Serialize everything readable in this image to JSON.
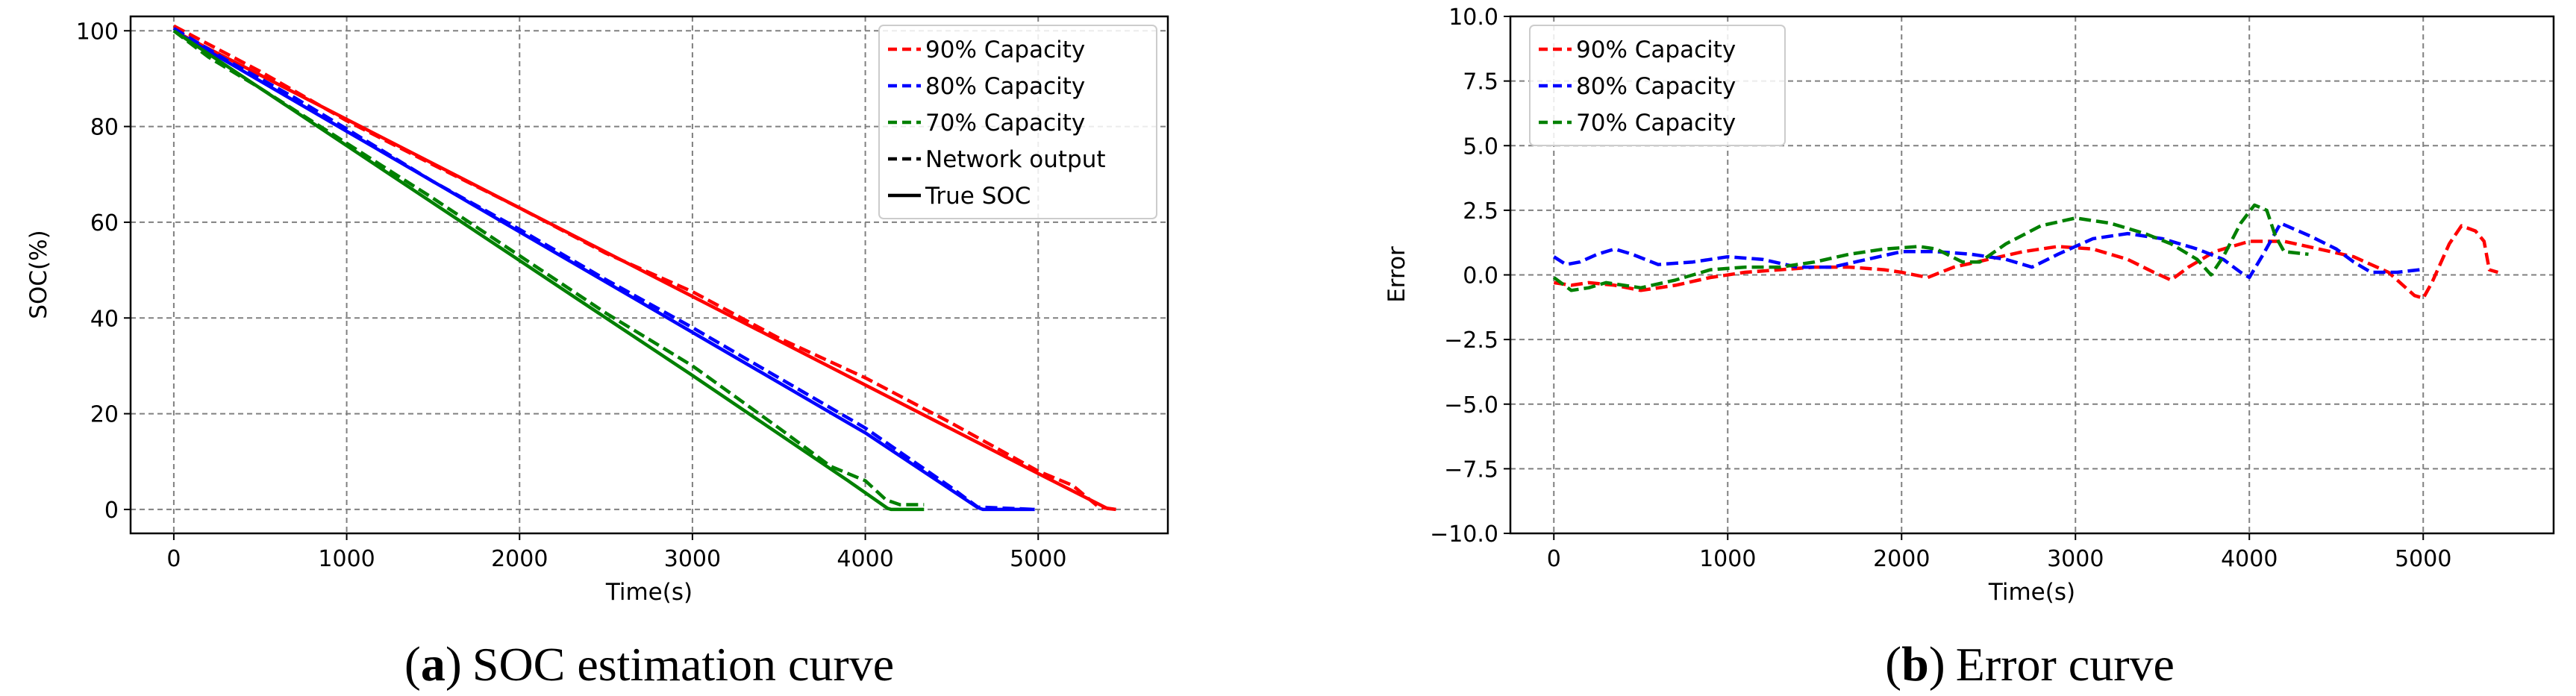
{
  "chart_data": [
    {
      "id": "a",
      "type": "line",
      "caption_letter": "a",
      "caption_text": "SOC estimation curve",
      "xlabel": "Time(s)",
      "ylabel": "SOC(%)",
      "xlim": [
        -250,
        5750
      ],
      "ylim": [
        -5,
        103
      ],
      "xticks": [
        0,
        1000,
        2000,
        3000,
        4000,
        5000
      ],
      "yticks": [
        0,
        20,
        40,
        60,
        80,
        100
      ],
      "grid": true,
      "legend_position": "top-right",
      "legend": [
        {
          "label": "90% Capacity",
          "color": "#ff0000",
          "style": "dashed"
        },
        {
          "label": "80% Capacity",
          "color": "#0000ff",
          "style": "dashed"
        },
        {
          "label": "70% Capacity",
          "color": "#008000",
          "style": "dashed"
        },
        {
          "label": "Network output",
          "color": "#000000",
          "style": "dashed"
        },
        {
          "label": "True SOC",
          "color": "#000000",
          "style": "solid"
        }
      ],
      "series": [
        {
          "name": "90% Capacity True SOC",
          "color": "#ff0000",
          "style": "solid",
          "points": [
            [
              0,
              100
            ],
            [
              1000,
              81.5
            ],
            [
              2000,
              63
            ],
            [
              3000,
              44.5
            ],
            [
              4000,
              26
            ],
            [
              5000,
              7.5
            ],
            [
              5400,
              0.2
            ],
            [
              5450,
              0
            ]
          ]
        },
        {
          "name": "90% Capacity Network output",
          "color": "#ff0000",
          "style": "dashed",
          "points": [
            [
              0,
              101
            ],
            [
              500,
              91.5
            ],
            [
              1000,
              81.2
            ],
            [
              1500,
              72
            ],
            [
              2000,
              63
            ],
            [
              2500,
              53.5
            ],
            [
              3000,
              45.5
            ],
            [
              3500,
              35.8
            ],
            [
              4000,
              27.5
            ],
            [
              4500,
              18
            ],
            [
              5000,
              8
            ],
            [
              5200,
              5
            ],
            [
              5350,
              0.5
            ],
            [
              5450,
              0
            ]
          ]
        },
        {
          "name": "80% Capacity True SOC",
          "color": "#0000ff",
          "style": "solid",
          "points": [
            [
              0,
              100
            ],
            [
              1000,
              79
            ],
            [
              2000,
              58
            ],
            [
              3000,
              37
            ],
            [
              4000,
              16
            ],
            [
              4650,
              0.4
            ],
            [
              4680,
              0
            ],
            [
              4980,
              0
            ]
          ]
        },
        {
          "name": "80% Capacity Network output",
          "color": "#0000ff",
          "style": "dashed",
          "points": [
            [
              0,
              100.5
            ],
            [
              300,
              94
            ],
            [
              700,
              86
            ],
            [
              1000,
              79.5
            ],
            [
              1500,
              68.5
            ],
            [
              2000,
              58.5
            ],
            [
              2500,
              48
            ],
            [
              3000,
              38
            ],
            [
              3500,
              27.5
            ],
            [
              4000,
              17
            ],
            [
              4200,
              12
            ],
            [
              4500,
              4.5
            ],
            [
              4650,
              0.5
            ],
            [
              4980,
              0
            ]
          ]
        },
        {
          "name": "70% Capacity True SOC",
          "color": "#008000",
          "style": "solid",
          "points": [
            [
              0,
              100
            ],
            [
              1000,
              76
            ],
            [
              2000,
              52
            ],
            [
              3000,
              28
            ],
            [
              3900,
              6
            ],
            [
              4130,
              0.2
            ],
            [
              4150,
              0
            ],
            [
              4340,
              0
            ]
          ]
        },
        {
          "name": "70% Capacity Network output",
          "color": "#008000",
          "style": "dashed",
          "points": [
            [
              0,
              100
            ],
            [
              200,
              94.5
            ],
            [
              500,
              88
            ],
            [
              1000,
              76.5
            ],
            [
              1500,
              65
            ],
            [
              2000,
              53
            ],
            [
              2500,
              41
            ],
            [
              3000,
              30
            ],
            [
              3500,
              17
            ],
            [
              3800,
              9
            ],
            [
              4000,
              6
            ],
            [
              4120,
              2
            ],
            [
              4200,
              1
            ],
            [
              4340,
              1
            ]
          ]
        }
      ]
    },
    {
      "id": "b",
      "type": "line",
      "caption_letter": "b",
      "caption_text": "Error curve",
      "xlabel": "Time(s)",
      "ylabel": "Error",
      "xlim": [
        -250,
        5750
      ],
      "ylim": [
        -10,
        10
      ],
      "xticks": [
        0,
        1000,
        2000,
        3000,
        4000,
        5000
      ],
      "yticks": [
        -10.0,
        -7.5,
        -5.0,
        -2.5,
        0.0,
        2.5,
        5.0,
        7.5,
        10.0
      ],
      "ytick_labels": [
        "−10.0",
        "−7.5",
        "−5.0",
        "−2.5",
        "0.0",
        "2.5",
        "5.0",
        "7.5",
        "10.0"
      ],
      "grid": true,
      "legend_position": "top-left",
      "legend": [
        {
          "label": "90% Capacity",
          "color": "#ff0000",
          "style": "dashed"
        },
        {
          "label": "80% Capacity",
          "color": "#0000ff",
          "style": "dashed"
        },
        {
          "label": "70% Capacity",
          "color": "#008000",
          "style": "dashed"
        }
      ],
      "series": [
        {
          "name": "90% Capacity",
          "color": "#ff0000",
          "style": "dashed",
          "points": [
            [
              0,
              -0.3
            ],
            [
              100,
              -0.4
            ],
            [
              200,
              -0.3
            ],
            [
              350,
              -0.4
            ],
            [
              500,
              -0.6
            ],
            [
              700,
              -0.4
            ],
            [
              900,
              -0.1
            ],
            [
              1100,
              0.1
            ],
            [
              1300,
              0.2
            ],
            [
              1500,
              0.3
            ],
            [
              1700,
              0.3
            ],
            [
              1900,
              0.2
            ],
            [
              2000,
              0.1
            ],
            [
              2150,
              -0.1
            ],
            [
              2300,
              0.3
            ],
            [
              2500,
              0.6
            ],
            [
              2700,
              0.9
            ],
            [
              2900,
              1.1
            ],
            [
              3100,
              1.0
            ],
            [
              3300,
              0.6
            ],
            [
              3450,
              0.1
            ],
            [
              3550,
              -0.2
            ],
            [
              3650,
              0.3
            ],
            [
              3800,
              0.9
            ],
            [
              4000,
              1.3
            ],
            [
              4200,
              1.3
            ],
            [
              4400,
              1.0
            ],
            [
              4600,
              0.7
            ],
            [
              4800,
              0.1
            ],
            [
              4950,
              -0.8
            ],
            [
              5000,
              -0.9
            ],
            [
              5050,
              -0.3
            ],
            [
              5150,
              1.2
            ],
            [
              5220,
              1.9
            ],
            [
              5300,
              1.7
            ],
            [
              5350,
              1.3
            ],
            [
              5380,
              0.2
            ],
            [
              5430,
              0.1
            ]
          ]
        },
        {
          "name": "80% Capacity",
          "color": "#0000ff",
          "style": "dashed",
          "points": [
            [
              0,
              0.7
            ],
            [
              70,
              0.4
            ],
            [
              150,
              0.5
            ],
            [
              250,
              0.8
            ],
            [
              350,
              1.0
            ],
            [
              450,
              0.8
            ],
            [
              600,
              0.4
            ],
            [
              800,
              0.5
            ],
            [
              1000,
              0.7
            ],
            [
              1200,
              0.6
            ],
            [
              1400,
              0.3
            ],
            [
              1600,
              0.3
            ],
            [
              1800,
              0.6
            ],
            [
              2000,
              0.9
            ],
            [
              2200,
              0.9
            ],
            [
              2400,
              0.8
            ],
            [
              2600,
              0.6
            ],
            [
              2750,
              0.3
            ],
            [
              2900,
              0.8
            ],
            [
              3100,
              1.4
            ],
            [
              3300,
              1.6
            ],
            [
              3500,
              1.4
            ],
            [
              3700,
              1.0
            ],
            [
              3850,
              0.6
            ],
            [
              3950,
              0.1
            ],
            [
              4000,
              -0.1
            ],
            [
              4080,
              0.8
            ],
            [
              4180,
              2.0
            ],
            [
              4350,
              1.5
            ],
            [
              4500,
              1.0
            ],
            [
              4600,
              0.5
            ],
            [
              4700,
              0.1
            ],
            [
              4850,
              0.1
            ],
            [
              4980,
              0.2
            ]
          ]
        },
        {
          "name": "70% Capacity",
          "color": "#008000",
          "style": "dashed",
          "points": [
            [
              0,
              -0.1
            ],
            [
              100,
              -0.6
            ],
            [
              200,
              -0.5
            ],
            [
              300,
              -0.3
            ],
            [
              500,
              -0.5
            ],
            [
              700,
              -0.2
            ],
            [
              900,
              0.2
            ],
            [
              1100,
              0.3
            ],
            [
              1300,
              0.3
            ],
            [
              1500,
              0.5
            ],
            [
              1700,
              0.8
            ],
            [
              1900,
              1.0
            ],
            [
              2100,
              1.1
            ],
            [
              2200,
              1.0
            ],
            [
              2350,
              0.5
            ],
            [
              2450,
              0.5
            ],
            [
              2600,
              1.2
            ],
            [
              2800,
              1.9
            ],
            [
              3000,
              2.2
            ],
            [
              3200,
              2.0
            ],
            [
              3400,
              1.6
            ],
            [
              3550,
              1.2
            ],
            [
              3700,
              0.6
            ],
            [
              3780,
              0.0
            ],
            [
              3850,
              0.7
            ],
            [
              3950,
              2.0
            ],
            [
              4030,
              2.7
            ],
            [
              4100,
              2.5
            ],
            [
              4150,
              1.5
            ],
            [
              4200,
              0.9
            ],
            [
              4340,
              0.8
            ]
          ]
        }
      ]
    }
  ]
}
